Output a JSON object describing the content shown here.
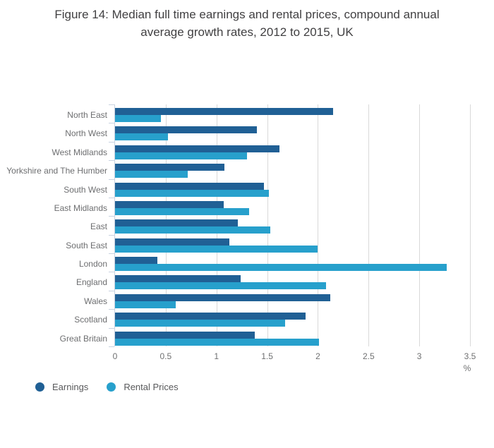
{
  "title": "Figure 14: Median full time earnings and rental prices, compound annual average growth rates, 2012 to 2015, UK",
  "chart_data": {
    "type": "bar",
    "orientation": "horizontal",
    "title": "Figure 14: Median full time earnings and rental prices, compound annual average growth rates, 2012 to 2015, UK",
    "categories": [
      "North East",
      "North West",
      "West Midlands",
      "Yorkshire and The Humber",
      "South West",
      "East Midlands",
      "East",
      "South East",
      "London",
      "England",
      "Wales",
      "Scotland",
      "Great Britain"
    ],
    "series": [
      {
        "name": "Earnings",
        "color": "#206095",
        "values": [
          2.15,
          1.4,
          1.62,
          1.08,
          1.47,
          1.07,
          1.21,
          1.13,
          0.42,
          1.24,
          2.12,
          1.88,
          1.38
        ]
      },
      {
        "name": "Rental Prices",
        "color": "#27A0CC",
        "values": [
          0.45,
          0.52,
          1.3,
          0.72,
          1.52,
          1.32,
          1.53,
          2.0,
          3.27,
          2.08,
          0.6,
          1.68,
          2.01
        ]
      }
    ],
    "xlabel": "%",
    "xlim": [
      0,
      3.5
    ],
    "xticks": [
      0,
      0.5,
      1,
      1.5,
      2,
      2.5,
      3,
      3.5
    ],
    "grid": "vertical-gridlines",
    "legend_position": "bottom-left"
  },
  "colors": {
    "background": "#ffffff",
    "earnings_bar": "#206095",
    "rental_bar": "#27A0CC",
    "gridline": "#d9d9d9",
    "axis": "#c9d3e1",
    "title_text": "#414042",
    "label_text": "#6d6e70",
    "legend_text": "#58595b"
  }
}
